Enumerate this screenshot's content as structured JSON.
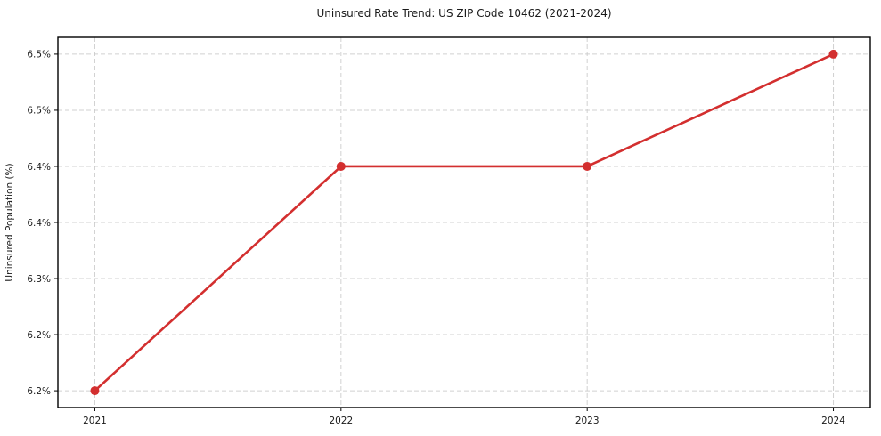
{
  "chart_data": {
    "type": "line",
    "title": "Uninsured Rate Trend: US ZIP Code 10462 (2021-2024)",
    "xlabel": "",
    "ylabel": "Uninsured Population (%)",
    "x": [
      2021,
      2022,
      2023,
      2024
    ],
    "x_tick_labels": [
      "2021",
      "2022",
      "2023",
      "2024"
    ],
    "y_ticks": [
      {
        "value": 6.2,
        "label": "6.2%"
      },
      {
        "value": 6.25,
        "label": "6.2%"
      },
      {
        "value": 6.3,
        "label": "6.3%"
      },
      {
        "value": 6.35,
        "label": "6.4%"
      },
      {
        "value": 6.4,
        "label": "6.4%"
      },
      {
        "value": 6.45,
        "label": "6.5%"
      },
      {
        "value": 6.5,
        "label": "6.5%"
      }
    ],
    "series": [
      {
        "name": "Uninsured Population (%)",
        "values": [
          6.2,
          6.4,
          6.4,
          6.5
        ],
        "color": "#d32f2f"
      }
    ],
    "xlim": [
      2020.85,
      2024.15
    ],
    "ylim": [
      6.185,
      6.515
    ],
    "grid": true,
    "grid_style": "dashed",
    "legend_position": "none",
    "colors": {
      "line": "#d32f2f",
      "marker": "#d32f2f",
      "grid": "#c9c9c9",
      "spine": "#000000",
      "background": "#ffffff",
      "text": "#1a1a1a"
    }
  }
}
